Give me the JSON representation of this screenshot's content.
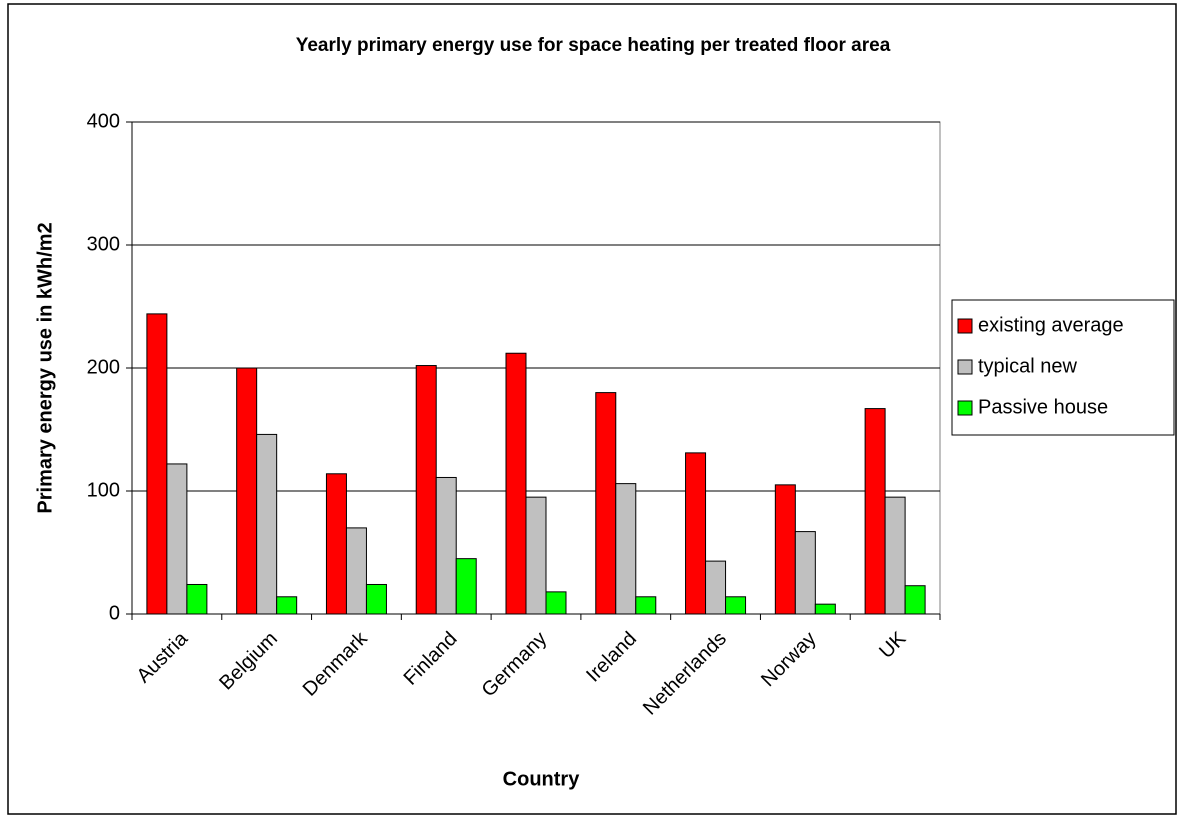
{
  "chart_data": {
    "type": "bar",
    "title": "Yearly primary energy use for space heating per treated floor area",
    "x_label": "Country",
    "y_label": "Primary energy use in kWh/m2",
    "categories": [
      "Austria",
      "Belgium",
      "Denmark",
      "Finland",
      "Germany",
      "Ireland",
      "Netherlands",
      "Norway",
      "UK"
    ],
    "series": [
      {
        "name": "existing average",
        "color": "#ff0000",
        "values": [
          244,
          200,
          114,
          202,
          212,
          180,
          131,
          105,
          167
        ]
      },
      {
        "name": "typical new",
        "color": "#c0c0c0",
        "values": [
          122,
          146,
          70,
          111,
          95,
          106,
          43,
          67,
          95
        ]
      },
      {
        "name": "Passive house",
        "color": "#00ff00",
        "values": [
          24,
          14,
          24,
          45,
          18,
          14,
          14,
          8,
          23
        ]
      }
    ],
    "ylim": [
      0,
      400
    ],
    "yticks": [
      0,
      100,
      200,
      300,
      400
    ],
    "grid": true,
    "legend": "right"
  }
}
